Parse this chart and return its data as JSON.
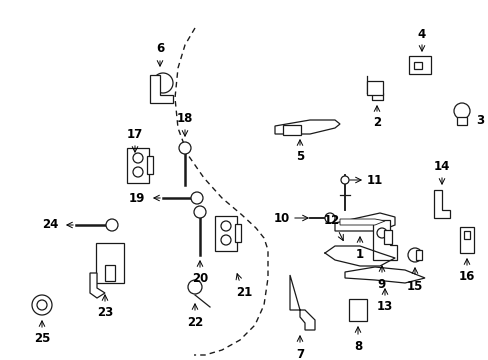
{
  "background_color": "#ffffff",
  "fig_width": 4.89,
  "fig_height": 3.6,
  "dpi": 100,
  "image_data": null
}
